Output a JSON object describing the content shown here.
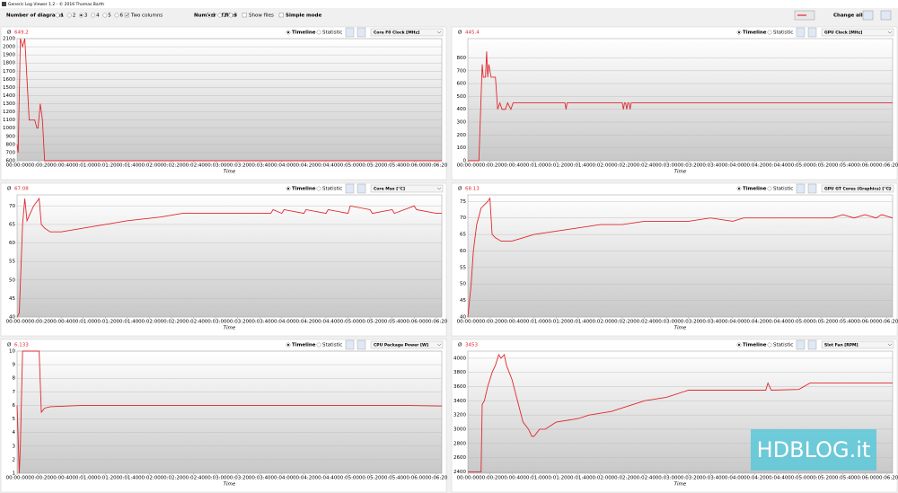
{
  "toolbar": {
    "window_title": "Generic Log Viewer 1.2 - © 2016 Thomas Barth",
    "diagrams_label": "Number of diagrams",
    "diagram_options": [
      "1",
      "2",
      "3",
      "4",
      "5",
      "6"
    ],
    "two_columns": "Two columns",
    "files_label": "Number of files",
    "file_options": [
      "1",
      "2",
      "3"
    ],
    "show_files": "Show files",
    "simple_mode": "Simple mode",
    "change_all": "Change all"
  },
  "panel_controls": {
    "average_symbol": "Ø",
    "modes": [
      "Timeline",
      "Statistic"
    ]
  },
  "watermark": "HDBLOG.it",
  "chart_data": [
    {
      "type": "line",
      "average": "649.2",
      "selector": "Core F0 Clock [MHz]",
      "xlabel": "Time",
      "x": [
        0,
        1,
        3,
        5,
        7,
        9,
        11,
        16,
        18,
        19,
        21,
        23,
        25,
        30,
        60,
        100,
        150,
        200,
        250,
        300,
        350,
        385
      ],
      "series": [
        {
          "color": "#e0282e",
          "values": [
            800,
            700,
            2100,
            2000,
            2100,
            1600,
            1100,
            1100,
            1000,
            1000,
            1300,
            1100,
            600,
            600,
            600,
            600,
            600,
            600,
            600,
            600,
            600,
            600
          ]
        }
      ],
      "ylim": [
        600,
        2100
      ],
      "yticks": [
        600,
        700,
        800,
        900,
        1000,
        1100,
        1200,
        1300,
        1400,
        1500,
        1600,
        1700,
        1800,
        1900,
        2000,
        2100
      ],
      "xlim": [
        0,
        385
      ],
      "xticks": [
        {
          "value": 0,
          "label": "00:00:00"
        },
        {
          "value": 20,
          "label": "00:00:20"
        },
        {
          "value": 40,
          "label": "00:00:40"
        },
        {
          "value": 60,
          "label": "00:01:00"
        },
        {
          "value": 80,
          "label": "00:01:20"
        },
        {
          "value": 100,
          "label": "00:01:40"
        },
        {
          "value": 120,
          "label": "00:02:00"
        },
        {
          "value": 140,
          "label": "00:02:20"
        },
        {
          "value": 160,
          "label": "00:02:40"
        },
        {
          "value": 180,
          "label": "00:03:00"
        },
        {
          "value": 200,
          "label": "00:03:20"
        },
        {
          "value": 220,
          "label": "00:03:40"
        },
        {
          "value": 240,
          "label": "00:04:00"
        },
        {
          "value": 260,
          "label": "00:04:20"
        },
        {
          "value": 280,
          "label": "00:04:40"
        },
        {
          "value": 300,
          "label": "00:05:00"
        },
        {
          "value": 320,
          "label": "00:05:20"
        },
        {
          "value": 340,
          "label": "00:05:40"
        },
        {
          "value": 360,
          "label": "00:06:00"
        },
        {
          "value": 380,
          "label": "00:06:20"
        }
      ],
      "grid": true
    },
    {
      "type": "line",
      "average": "445.4",
      "selector": "GPU Clock [MHz]",
      "xlabel": "Time",
      "x": [
        0,
        10,
        13,
        14,
        16,
        17,
        18,
        19,
        21,
        25,
        27,
        29,
        31,
        34,
        36,
        39,
        41,
        44,
        88,
        89,
        90,
        140,
        141,
        142,
        143,
        144,
        145,
        146,
        147,
        148,
        200,
        300,
        385
      ],
      "series": [
        {
          "color": "#e0282e",
          "values": [
            0,
            0,
            750,
            650,
            650,
            850,
            650,
            750,
            650,
            650,
            400,
            450,
            400,
            400,
            450,
            400,
            450,
            450,
            450,
            400,
            450,
            450,
            400,
            450,
            450,
            400,
            450,
            450,
            400,
            450,
            450,
            450,
            450
          ]
        }
      ],
      "ylim": [
        0,
        950
      ],
      "yticks": [
        0,
        100,
        200,
        300,
        400,
        500,
        600,
        700,
        800
      ],
      "xlim": [
        0,
        385
      ],
      "xticks": [
        {
          "value": 0,
          "label": "00:00:00"
        },
        {
          "value": 20,
          "label": "00:00:20"
        },
        {
          "value": 40,
          "label": "00:00:40"
        },
        {
          "value": 60,
          "label": "00:01:00"
        },
        {
          "value": 80,
          "label": "00:01:20"
        },
        {
          "value": 100,
          "label": "00:01:40"
        },
        {
          "value": 120,
          "label": "00:02:00"
        },
        {
          "value": 140,
          "label": "00:02:20"
        },
        {
          "value": 160,
          "label": "00:02:40"
        },
        {
          "value": 180,
          "label": "00:03:00"
        },
        {
          "value": 200,
          "label": "00:03:20"
        },
        {
          "value": 220,
          "label": "00:03:40"
        },
        {
          "value": 240,
          "label": "00:04:00"
        },
        {
          "value": 260,
          "label": "00:04:20"
        },
        {
          "value": 280,
          "label": "00:04:40"
        },
        {
          "value": 300,
          "label": "00:05:00"
        },
        {
          "value": 320,
          "label": "00:05:20"
        },
        {
          "value": 340,
          "label": "00:05:40"
        },
        {
          "value": 360,
          "label": "00:06:00"
        },
        {
          "value": 380,
          "label": "00:06:20"
        }
      ],
      "grid": true
    },
    {
      "type": "line",
      "average": "67.08",
      "selector": "Core Max [°C]",
      "xlabel": "Time",
      "x": [
        0,
        2,
        5,
        7,
        9,
        15,
        20,
        22,
        25,
        30,
        40,
        60,
        80,
        100,
        130,
        150,
        200,
        230,
        232,
        240,
        242,
        260,
        262,
        280,
        282,
        300,
        302,
        320,
        322,
        340,
        342,
        360,
        362,
        380,
        385
      ],
      "series": [
        {
          "color": "#e0282e",
          "values": [
            40,
            41,
            65,
            72,
            66,
            70,
            72,
            65,
            64,
            63,
            63,
            64,
            65,
            66,
            67,
            68,
            68,
            68,
            69,
            68,
            69,
            68,
            69,
            68,
            69,
            68,
            70,
            69,
            68,
            69,
            68,
            70,
            69,
            68,
            68
          ]
        }
      ],
      "ylim": [
        40,
        73
      ],
      "yticks": [
        40,
        45,
        50,
        55,
        60,
        65,
        70
      ],
      "xlim": [
        0,
        385
      ],
      "xticks": [
        {
          "value": 0,
          "label": "00:00:00"
        },
        {
          "value": 20,
          "label": "00:00:20"
        },
        {
          "value": 40,
          "label": "00:00:40"
        },
        {
          "value": 60,
          "label": "00:01:00"
        },
        {
          "value": 80,
          "label": "00:01:20"
        },
        {
          "value": 100,
          "label": "00:01:40"
        },
        {
          "value": 120,
          "label": "00:02:00"
        },
        {
          "value": 140,
          "label": "00:02:20"
        },
        {
          "value": 160,
          "label": "00:02:40"
        },
        {
          "value": 180,
          "label": "00:03:00"
        },
        {
          "value": 200,
          "label": "00:03:20"
        },
        {
          "value": 220,
          "label": "00:03:40"
        },
        {
          "value": 240,
          "label": "00:04:00"
        },
        {
          "value": 260,
          "label": "00:04:20"
        },
        {
          "value": 280,
          "label": "00:04:40"
        },
        {
          "value": 300,
          "label": "00:05:00"
        },
        {
          "value": 320,
          "label": "00:05:20"
        },
        {
          "value": 340,
          "label": "00:05:40"
        },
        {
          "value": 360,
          "label": "00:06:00"
        },
        {
          "value": 380,
          "label": "00:06:20"
        }
      ],
      "grid": true
    },
    {
      "type": "line",
      "average": "68.13",
      "selector": "GPU GT Cores (Graphics) [°C]",
      "xlabel": "Time",
      "x": [
        0,
        3,
        5,
        8,
        12,
        18,
        20,
        22,
        25,
        30,
        40,
        50,
        60,
        80,
        100,
        120,
        140,
        160,
        200,
        220,
        240,
        250,
        260,
        280,
        300,
        330,
        340,
        350,
        360,
        370,
        375,
        385
      ],
      "series": [
        {
          "color": "#e0282e",
          "values": [
            40,
            50,
            60,
            68,
            73,
            75,
            76,
            65,
            64,
            63,
            63,
            64,
            65,
            66,
            67,
            68,
            68,
            69,
            69,
            70,
            69,
            70,
            70,
            70,
            70,
            70,
            71,
            70,
            71,
            70,
            71,
            70
          ]
        }
      ],
      "ylim": [
        40,
        77
      ],
      "yticks": [
        40,
        45,
        50,
        55,
        60,
        65,
        70,
        75
      ],
      "xlim": [
        0,
        385
      ],
      "xticks": [
        {
          "value": 0,
          "label": "00:00:00"
        },
        {
          "value": 20,
          "label": "00:00:20"
        },
        {
          "value": 40,
          "label": "00:00:40"
        },
        {
          "value": 60,
          "label": "00:01:00"
        },
        {
          "value": 80,
          "label": "00:01:20"
        },
        {
          "value": 100,
          "label": "00:01:40"
        },
        {
          "value": 120,
          "label": "00:02:00"
        },
        {
          "value": 140,
          "label": "00:02:20"
        },
        {
          "value": 160,
          "label": "00:02:40"
        },
        {
          "value": 180,
          "label": "00:03:00"
        },
        {
          "value": 200,
          "label": "00:03:20"
        },
        {
          "value": 220,
          "label": "00:03:40"
        },
        {
          "value": 240,
          "label": "00:04:00"
        },
        {
          "value": 260,
          "label": "00:04:20"
        },
        {
          "value": 280,
          "label": "00:04:40"
        },
        {
          "value": 300,
          "label": "00:05:00"
        },
        {
          "value": 320,
          "label": "00:05:20"
        },
        {
          "value": 340,
          "label": "00:05:40"
        },
        {
          "value": 360,
          "label": "00:06:00"
        },
        {
          "value": 380,
          "label": "00:06:20"
        }
      ],
      "grid": true
    },
    {
      "type": "line",
      "average": "6.133",
      "selector": "CPU Package Power [W]",
      "xlabel": "Time",
      "x": [
        0,
        2,
        3,
        5,
        10,
        20,
        22,
        25,
        30,
        60,
        100,
        150,
        200,
        250,
        300,
        350,
        385
      ],
      "series": [
        {
          "color": "#e0282e",
          "values": [
            6,
            1,
            3,
            10,
            10,
            10,
            5.5,
            5.8,
            5.9,
            6,
            6,
            6,
            6,
            6,
            6,
            6,
            5.95
          ]
        }
      ],
      "ylim": [
        1,
        10
      ],
      "yticks": [
        1,
        2,
        3,
        4,
        5,
        6,
        7,
        8,
        9,
        10
      ],
      "xlim": [
        0,
        385
      ],
      "xticks": [
        {
          "value": 0,
          "label": "00:00:00"
        },
        {
          "value": 20,
          "label": "00:00:20"
        },
        {
          "value": 40,
          "label": "00:00:40"
        },
        {
          "value": 60,
          "label": "00:01:00"
        },
        {
          "value": 80,
          "label": "00:01:20"
        },
        {
          "value": 100,
          "label": "00:01:40"
        },
        {
          "value": 120,
          "label": "00:02:00"
        },
        {
          "value": 140,
          "label": "00:02:20"
        },
        {
          "value": 160,
          "label": "00:02:40"
        },
        {
          "value": 180,
          "label": "00:03:00"
        },
        {
          "value": 200,
          "label": "00:03:20"
        },
        {
          "value": 220,
          "label": "00:03:40"
        },
        {
          "value": 240,
          "label": "00:04:00"
        },
        {
          "value": 260,
          "label": "00:04:20"
        },
        {
          "value": 280,
          "label": "00:04:40"
        },
        {
          "value": 300,
          "label": "00:05:00"
        },
        {
          "value": 320,
          "label": "00:05:20"
        },
        {
          "value": 340,
          "label": "00:05:40"
        },
        {
          "value": 360,
          "label": "00:06:00"
        },
        {
          "value": 380,
          "label": "00:06:20"
        }
      ],
      "grid": true
    },
    {
      "type": "line",
      "average": "3453",
      "selector": "Slot Fan [RPM]",
      "xlabel": "Time",
      "x": [
        0,
        12,
        13,
        15,
        18,
        22,
        25,
        28,
        30,
        33,
        35,
        40,
        45,
        50,
        55,
        58,
        60,
        65,
        70,
        80,
        100,
        110,
        130,
        150,
        160,
        180,
        200,
        250,
        270,
        272,
        275,
        300,
        310,
        385
      ],
      "series": [
        {
          "color": "#e0282e",
          "values": [
            2400,
            2400,
            3350,
            3400,
            3600,
            3800,
            3900,
            4050,
            4000,
            4050,
            3900,
            3700,
            3400,
            3100,
            3000,
            2900,
            2900,
            3000,
            3000,
            3100,
            3150,
            3200,
            3250,
            3350,
            3400,
            3450,
            3550,
            3550,
            3550,
            3650,
            3550,
            3560,
            3650,
            3650
          ]
        }
      ],
      "ylim": [
        2380,
        4100
      ],
      "yticks": [
        2400,
        2600,
        2800,
        3000,
        3200,
        3400,
        3600,
        3800,
        4000
      ],
      "xlim": [
        0,
        385
      ],
      "xticks": [
        {
          "value": 0,
          "label": "00:00:00"
        },
        {
          "value": 20,
          "label": "00:00:20"
        },
        {
          "value": 40,
          "label": "00:00:40"
        },
        {
          "value": 60,
          "label": "00:01:00"
        },
        {
          "value": 80,
          "label": "00:01:20"
        },
        {
          "value": 100,
          "label": "00:01:40"
        },
        {
          "value": 120,
          "label": "00:02:00"
        },
        {
          "value": 140,
          "label": "00:02:20"
        },
        {
          "value": 160,
          "label": "00:02:40"
        },
        {
          "value": 180,
          "label": "00:03:00"
        },
        {
          "value": 200,
          "label": "00:03:20"
        },
        {
          "value": 220,
          "label": "00:03:40"
        },
        {
          "value": 240,
          "label": "00:04:00"
        },
        {
          "value": 260,
          "label": "00:04:20"
        },
        {
          "value": 280,
          "label": "00:04:40"
        },
        {
          "value": 300,
          "label": "00:05:00"
        },
        {
          "value": 320,
          "label": "00:05:20"
        },
        {
          "value": 340,
          "label": "00:05:40"
        },
        {
          "value": 360,
          "label": "00:06:00"
        },
        {
          "value": 380,
          "label": "00:06:20"
        }
      ],
      "grid": true
    }
  ]
}
